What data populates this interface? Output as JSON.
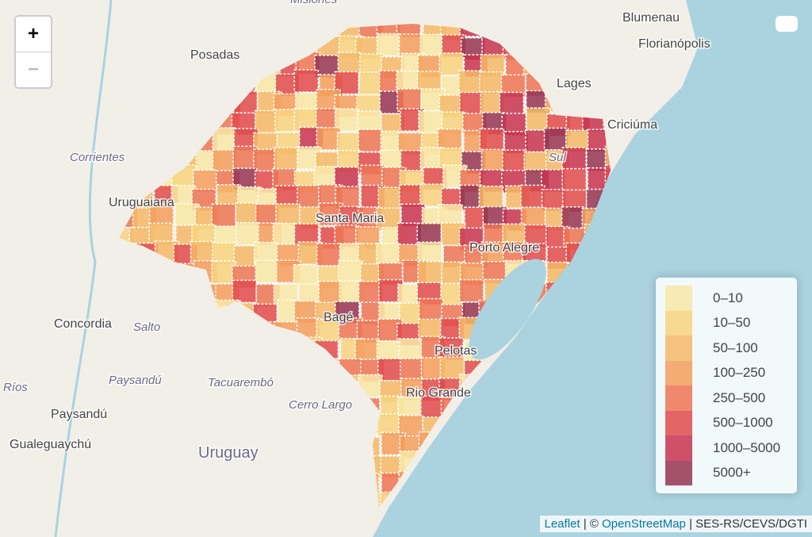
{
  "map": {
    "zoom_controls": [
      "+",
      "−"
    ],
    "cities": [
      "Posadas",
      "Blumenau",
      "Florianópolis",
      "Lages",
      "Criciúma",
      "Uruguaiana",
      "Concordia",
      "Paysandú",
      "Gualeguaychú",
      "Pelotas",
      "Rio Grande",
      "Bagé",
      "Santa Maria",
      "Porto Alegre"
    ],
    "regions": [
      "Corrientes",
      "Salto",
      "Paysandú",
      "Tacuarembó",
      "Ríos",
      "Cerro Largo",
      "Misiones",
      "Sul"
    ],
    "country": "Uruguay",
    "legend": [
      {
        "label": "0–10",
        "color": "#f9e8a6"
      },
      {
        "label": "10–50",
        "color": "#f8d47e"
      },
      {
        "label": "50–100",
        "color": "#f6b866"
      },
      {
        "label": "100–250",
        "color": "#f59d5c"
      },
      {
        "label": "250–500",
        "color": "#ef7453"
      },
      {
        "label": "500–1000",
        "color": "#e24b4b"
      },
      {
        "label": "1000–5000",
        "color": "#c9334f"
      },
      {
        "label": "5000+",
        "color": "#963452"
      }
    ],
    "attribution": [
      "Leaflet",
      " | © ",
      "OpenStreetMap",
      " | SES-RS/CEVS/DGTI"
    ]
  }
}
